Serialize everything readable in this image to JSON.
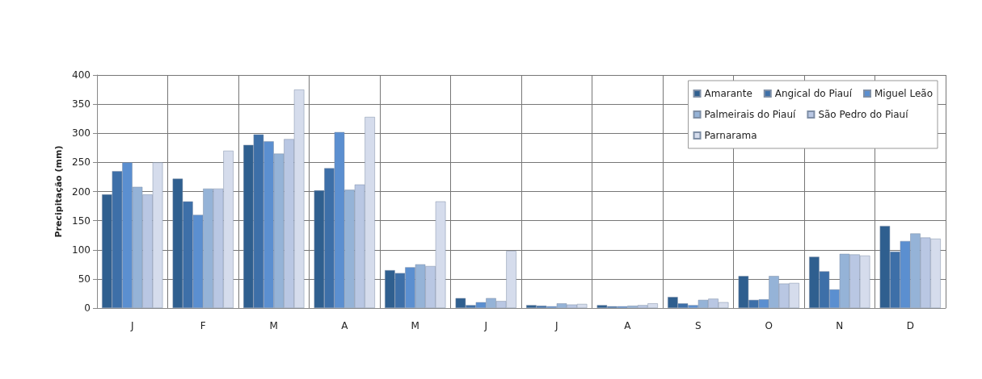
{
  "chart_data": {
    "type": "bar",
    "ylabel": "Precipitação (mm)",
    "categories": [
      "J",
      "F",
      "M",
      "A",
      "M",
      "J",
      "J",
      "A",
      "S",
      "O",
      "N",
      "D"
    ],
    "series": [
      {
        "name": "Amarante",
        "color": "#2f5f8f",
        "values": [
          195,
          222,
          280,
          202,
          65,
          17,
          5,
          5,
          19,
          55,
          88,
          141
        ]
      },
      {
        "name": "Angical do Piauí",
        "color": "#3d6fa8",
        "values": [
          235,
          183,
          298,
          240,
          60,
          5,
          4,
          3,
          8,
          14,
          63,
          97
        ]
      },
      {
        "name": "Miguel Leão",
        "color": "#5b8fd0",
        "values": [
          250,
          160,
          286,
          302,
          70,
          10,
          3,
          3,
          5,
          15,
          32,
          115
        ]
      },
      {
        "name": "Palmeirais do Piauí",
        "color": "#95b3d7",
        "values": [
          208,
          205,
          265,
          203,
          75,
          17,
          8,
          4,
          14,
          55,
          93,
          128
        ]
      },
      {
        "name": "São Pedro do Piauí",
        "color": "#b9c7e3",
        "values": [
          195,
          205,
          290,
          212,
          72,
          12,
          6,
          5,
          16,
          42,
          92,
          121
        ]
      },
      {
        "name": "Parnarama",
        "color": "#d5dcec",
        "values": [
          250,
          270,
          375,
          328,
          183,
          98,
          7,
          8,
          10,
          43,
          90,
          119
        ]
      }
    ],
    "ylim": [
      0,
      400
    ],
    "yticks": [
      0,
      50,
      100,
      150,
      200,
      250,
      300,
      350,
      400
    ],
    "grid": true,
    "legend": "top right"
  }
}
